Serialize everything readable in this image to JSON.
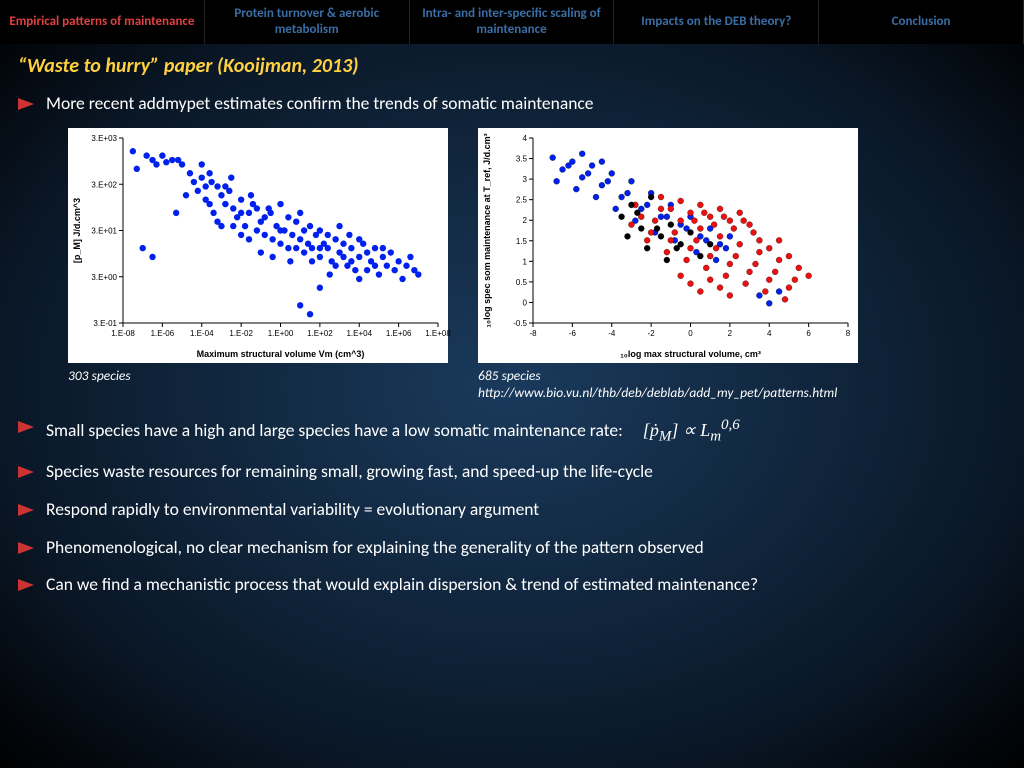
{
  "tabs": [
    {
      "label": "Empirical patterns of maintenance",
      "active": true
    },
    {
      "label": "Protein turnover & aerobic metabolism",
      "active": false
    },
    {
      "label": "Intra- and inter-specific scaling of maintenance",
      "active": false
    },
    {
      "label": "Impacts on the DEB theory?",
      "active": false
    },
    {
      "label": "Conclusion",
      "active": false
    }
  ],
  "title": "“Waste to hurry” paper (Kooijman, 2013)",
  "lead_bullet": "More recent addmypet estimates confirm the trends of somatic maintenance",
  "chart1": {
    "type": "scatter",
    "xlabel": "Maximum structural volume Vm (cm^3)",
    "ylabel": "[p_M] J/d.cm^3",
    "xticks": [
      "1.E-08",
      "1.E-06",
      "1.E-04",
      "1.E-02",
      "1.E+00",
      "1.E+02",
      "1.E+04",
      "1.E+06",
      "1.E+08"
    ],
    "yticks": [
      "3.E-01",
      "3.E+00",
      "3.E+01",
      "3.E+02",
      "3.E+03"
    ],
    "point_color": "#0020ee",
    "bg": "#ffffff",
    "caption": "303 species",
    "points": [
      [
        -7.5,
        3.2
      ],
      [
        -7.3,
        2.8
      ],
      [
        -6.8,
        3.1
      ],
      [
        -6.5,
        3.0
      ],
      [
        -6.3,
        2.9
      ],
      [
        -6.0,
        3.1
      ],
      [
        -5.8,
        2.95
      ],
      [
        -5.5,
        3.0
      ],
      [
        -5.3,
        1.8
      ],
      [
        -5.2,
        3.0
      ],
      [
        -5.0,
        2.9
      ],
      [
        -4.8,
        2.2
      ],
      [
        -4.6,
        2.7
      ],
      [
        -4.4,
        2.5
      ],
      [
        -4.2,
        2.3
      ],
      [
        -4.0,
        2.6
      ],
      [
        -3.8,
        2.1
      ],
      [
        -3.6,
        2.7
      ],
      [
        -3.4,
        1.8
      ],
      [
        -3.2,
        2.4
      ],
      [
        -3.0,
        2.2
      ],
      [
        -2.8,
        2.0
      ],
      [
        -2.6,
        2.3
      ],
      [
        -2.4,
        1.9
      ],
      [
        -2.2,
        1.7
      ],
      [
        -2.0,
        2.1
      ],
      [
        -1.8,
        1.5
      ],
      [
        -1.6,
        1.8
      ],
      [
        -1.4,
        2.0
      ],
      [
        -1.2,
        1.4
      ],
      [
        -1.0,
        1.6
      ],
      [
        -0.8,
        1.3
      ],
      [
        -0.6,
        1.9
      ],
      [
        -0.4,
        1.2
      ],
      [
        -0.2,
        1.5
      ],
      [
        0.0,
        1.1
      ],
      [
        0.2,
        1.4
      ],
      [
        0.4,
        1.0
      ],
      [
        0.6,
        1.3
      ],
      [
        0.8,
        1.6
      ],
      [
        1.0,
        1.2
      ],
      [
        1.2,
        0.9
      ],
      [
        1.4,
        1.1
      ],
      [
        1.6,
        1.0
      ],
      [
        1.8,
        1.3
      ],
      [
        2.0,
        0.8
      ],
      [
        2.2,
        1.1
      ],
      [
        2.4,
        1.0
      ],
      [
        2.6,
        0.7
      ],
      [
        2.8,
        1.2
      ],
      [
        3.0,
        0.9
      ],
      [
        3.2,
        1.1
      ],
      [
        3.4,
        0.6
      ],
      [
        3.6,
        1.0
      ],
      [
        3.8,
        0.5
      ],
      [
        4.0,
        0.8
      ],
      [
        4.2,
        1.1
      ],
      [
        4.4,
        0.9
      ],
      [
        4.6,
        0.7
      ],
      [
        4.8,
        1.0
      ],
      [
        5.0,
        0.4
      ],
      [
        5.2,
        0.8
      ],
      [
        5.4,
        0.6
      ],
      [
        5.6,
        0.9
      ],
      [
        5.8,
        0.5
      ],
      [
        6.0,
        0.7
      ],
      [
        6.2,
        0.3
      ],
      [
        6.4,
        0.6
      ],
      [
        6.6,
        0.8
      ],
      [
        6.8,
        0.5
      ],
      [
        7.0,
        0.4
      ],
      [
        -7.0,
        1.0
      ],
      [
        -6.5,
        0.8
      ],
      [
        -4.0,
        2.9
      ],
      [
        -3.5,
        2.5
      ],
      [
        -3.0,
        1.5
      ],
      [
        -2.5,
        2.6
      ],
      [
        -2.0,
        1.3
      ],
      [
        -1.5,
        2.2
      ],
      [
        -1.0,
        0.9
      ],
      [
        -0.5,
        1.8
      ],
      [
        0.0,
        2.0
      ],
      [
        0.5,
        0.7
      ],
      [
        1.0,
        1.8
      ],
      [
        1.5,
        1.5
      ],
      [
        2.0,
        1.4
      ],
      [
        2.5,
        0.4
      ],
      [
        3.0,
        1.5
      ],
      [
        3.5,
        1.3
      ],
      [
        4.0,
        0.3
      ],
      [
        1.0,
        -0.3
      ],
      [
        1.5,
        -0.5
      ],
      [
        2.0,
        0.1
      ],
      [
        -3.8,
        2.4
      ],
      [
        -3.6,
        2.0
      ],
      [
        -3.2,
        1.6
      ],
      [
        -2.8,
        2.4
      ],
      [
        -2.4,
        1.5
      ],
      [
        -2.0,
        1.8
      ],
      [
        -1.6,
        1.2
      ],
      [
        -1.2,
        1.9
      ],
      [
        -0.8,
        1.7
      ],
      [
        -0.4,
        0.8
      ],
      [
        0.0,
        1.4
      ],
      [
        0.4,
        1.7
      ],
      [
        0.8,
        1.0
      ],
      [
        1.2,
        1.4
      ],
      [
        1.6,
        0.7
      ],
      [
        2.0,
        1.0
      ],
      [
        2.4,
        1.3
      ],
      [
        2.8,
        0.6
      ],
      [
        3.2,
        0.8
      ],
      [
        3.6,
        0.7
      ],
      [
        4.0,
        1.2
      ],
      [
        4.4,
        0.5
      ],
      [
        4.8,
        0.6
      ],
      [
        5.2,
        1.0
      ]
    ],
    "xrange": [
      -8,
      8
    ],
    "yrange": [
      -0.7,
      3.5
    ]
  },
  "chart2": {
    "type": "scatter",
    "xlabel": "₁₀log max structural volume, cm³",
    "ylabel": "₁₀log spec som maintenance at T_ref, J/d.cm³",
    "xticks": [
      "-8",
      "-6",
      "-4",
      "-2",
      "0",
      "2",
      "4",
      "6",
      "8"
    ],
    "yticks": [
      "-0.5",
      "0",
      "0.5",
      "1",
      "1.5",
      "2",
      "2.5",
      "3",
      "3.5",
      "4"
    ],
    "bg": "#ffffff",
    "caption": "685 species",
    "caption2": "http://www.bio.vu.nl/thb/deb/deblab/add_my_pet/patterns.html",
    "series": {
      "blue": {
        "color": "#0020ee",
        "points": [
          [
            -7,
            3.5
          ],
          [
            -6.5,
            3.2
          ],
          [
            -6,
            3.4
          ],
          [
            -5.5,
            3.0
          ],
          [
            -5,
            3.3
          ],
          [
            -4.5,
            2.8
          ],
          [
            -4,
            3.1
          ],
          [
            -3.5,
            2.5
          ],
          [
            -3,
            2.9
          ],
          [
            -2.5,
            2.2
          ],
          [
            -2,
            2.6
          ],
          [
            -1.5,
            2.0
          ],
          [
            -1,
            2.3
          ],
          [
            -0.5,
            1.8
          ],
          [
            0,
            2.0
          ],
          [
            0.5,
            1.5
          ],
          [
            1,
            1.7
          ],
          [
            1.5,
            1.3
          ],
          [
            2,
            1.5
          ],
          [
            -6.8,
            2.9
          ],
          [
            -6.2,
            3.3
          ],
          [
            -5.8,
            2.7
          ],
          [
            -5.2,
            3.1
          ],
          [
            -4.8,
            2.5
          ],
          [
            -4.2,
            2.9
          ],
          [
            -3.8,
            2.2
          ],
          [
            -3.2,
            2.6
          ],
          [
            -2.8,
            1.9
          ],
          [
            -2.2,
            2.3
          ],
          [
            -1.8,
            1.6
          ],
          [
            -1.2,
            2.0
          ],
          [
            -0.8,
            1.4
          ],
          [
            -0.2,
            1.7
          ],
          [
            0.3,
            1.1
          ],
          [
            0.8,
            1.4
          ],
          [
            1.3,
            0.9
          ],
          [
            1.8,
            1.2
          ],
          [
            3.5,
            0.0
          ],
          [
            4,
            -0.2
          ],
          [
            4.5,
            0.1
          ],
          [
            -5.5,
            3.6
          ],
          [
            -4.5,
            3.4
          ]
        ]
      },
      "red": {
        "color": "#ee1010",
        "points": [
          [
            -3,
            1.8
          ],
          [
            -2.5,
            2.0
          ],
          [
            -2,
            1.6
          ],
          [
            -1.5,
            2.2
          ],
          [
            -1,
            1.4
          ],
          [
            -0.5,
            1.9
          ],
          [
            0,
            1.2
          ],
          [
            0.5,
            1.7
          ],
          [
            1,
            1.0
          ],
          [
            1.5,
            1.5
          ],
          [
            2,
            0.8
          ],
          [
            2.5,
            1.3
          ],
          [
            3,
            0.6
          ],
          [
            3.5,
            1.1
          ],
          [
            4,
            0.4
          ],
          [
            4.5,
            0.9
          ],
          [
            5,
            0.2
          ],
          [
            5.5,
            0.7
          ],
          [
            6,
            0.5
          ],
          [
            -2.8,
            2.3
          ],
          [
            -2.2,
            1.4
          ],
          [
            -1.8,
            1.9
          ],
          [
            -1.2,
            1.1
          ],
          [
            -0.8,
            1.6
          ],
          [
            -0.2,
            0.9
          ],
          [
            0.3,
            1.4
          ],
          [
            0.8,
            0.7
          ],
          [
            1.3,
            1.2
          ],
          [
            1.8,
            0.5
          ],
          [
            2.3,
            1.0
          ],
          [
            2.8,
            0.3
          ],
          [
            3.3,
            0.8
          ],
          [
            3.8,
            0.1
          ],
          [
            4.3,
            0.6
          ],
          [
            4.8,
            -0.1
          ],
          [
            5.3,
            0.4
          ],
          [
            -1.5,
            2.5
          ],
          [
            -1,
            2.2
          ],
          [
            -0.5,
            2.4
          ],
          [
            0,
            2.1
          ],
          [
            0.5,
            2.3
          ],
          [
            1,
            2.0
          ],
          [
            1.5,
            2.2
          ],
          [
            2,
            1.9
          ],
          [
            2.5,
            2.1
          ],
          [
            3,
            1.8
          ],
          [
            0.2,
            1.9
          ],
          [
            0.7,
            2.1
          ],
          [
            1.2,
            1.8
          ],
          [
            1.7,
            2.0
          ],
          [
            2.2,
            1.7
          ],
          [
            2.7,
            1.9
          ],
          [
            3.2,
            1.6
          ],
          [
            -0.5,
            0.5
          ],
          [
            0,
            0.3
          ],
          [
            0.5,
            0.1
          ],
          [
            1,
            0.4
          ],
          [
            1.5,
            0.2
          ],
          [
            2,
            0.0
          ],
          [
            3.5,
            1.4
          ],
          [
            4,
            1.2
          ],
          [
            4.5,
            1.4
          ],
          [
            5,
            1.0
          ]
        ]
      },
      "black": {
        "color": "#000000",
        "points": [
          [
            -3.5,
            2.0
          ],
          [
            -3,
            2.3
          ],
          [
            -2.5,
            1.7
          ],
          [
            -2,
            2.5
          ],
          [
            -1.5,
            1.5
          ],
          [
            -1,
            1.8
          ],
          [
            -0.5,
            1.3
          ],
          [
            0,
            1.6
          ],
          [
            0.5,
            1.0
          ],
          [
            1,
            1.3
          ],
          [
            -3.2,
            1.5
          ],
          [
            -2.7,
            2.1
          ],
          [
            -2.2,
            1.2
          ],
          [
            -1.7,
            1.7
          ],
          [
            -1.2,
            0.9
          ],
          [
            -0.7,
            1.2
          ]
        ]
      }
    },
    "xrange": [
      -8,
      8
    ],
    "yrange": [
      -0.7,
      4
    ]
  },
  "bullets": [
    "Small species have a high and large species have a low somatic maintenance rate:",
    "Species waste resources for remaining small, growing fast, and speed-up the life-cycle",
    "Respond rapidly to environmental variability = evolutionary argument",
    "Phenomenological, no clear mechanism for explaining the generality of the pattern observed",
    "Can we find a mechanistic process that would explain dispersion & trend of estimated maintenance?"
  ],
  "formula": "[ṗₘ] ∝ Lₘ⁰·⁶",
  "colors": {
    "arrow": "#cc3333",
    "title": "#ffd040",
    "tab_active": "#e04040",
    "tab_inactive": "#3a6ea5"
  }
}
